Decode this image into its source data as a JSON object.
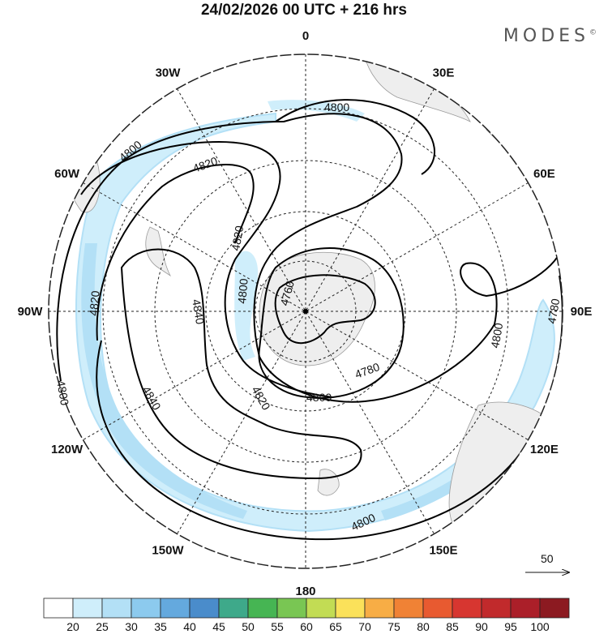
{
  "title": "24/02/2026  00 UTC  + 216 hrs",
  "brand": "MODES",
  "brand_mark": "©",
  "meridian_labels": [
    {
      "text": "0",
      "lon": 0
    },
    {
      "text": "30E",
      "lon": 30
    },
    {
      "text": "60E",
      "lon": 60
    },
    {
      "text": "90E",
      "lon": 90
    },
    {
      "text": "120E",
      "lon": 120
    },
    {
      "text": "150E",
      "lon": 150
    },
    {
      "text": "180",
      "lon": 180
    },
    {
      "text": "150W",
      "lon": -150
    },
    {
      "text": "120W",
      "lon": -120
    },
    {
      "text": "90W",
      "lon": -90
    },
    {
      "text": "60W",
      "lon": -60
    },
    {
      "text": "30W",
      "lon": -30
    }
  ],
  "contour_labels": [
    "4800",
    "4800",
    "4800",
    "4800",
    "4800",
    "4800",
    "4820",
    "4820",
    "4820",
    "4820",
    "4840",
    "4840",
    "4760",
    "4780",
    "4780",
    "4800"
  ],
  "vector_scale": {
    "label": "50"
  },
  "colorbar": {
    "colors": [
      "#ffffff",
      "#cfeefb",
      "#b3e0f6",
      "#8ccaee",
      "#64a9de",
      "#4a8ccb",
      "#3ea98a",
      "#46b553",
      "#79c653",
      "#c2dc54",
      "#fbe15a",
      "#f7ad45",
      "#f08235",
      "#e85a30",
      "#d73630",
      "#c12a2c",
      "#ab1f29",
      "#8c1a21"
    ],
    "ticks": [
      "20",
      "25",
      "30",
      "35",
      "40",
      "45",
      "50",
      "55",
      "60",
      "65",
      "70",
      "75",
      "80",
      "85",
      "90",
      "95",
      "100"
    ]
  }
}
